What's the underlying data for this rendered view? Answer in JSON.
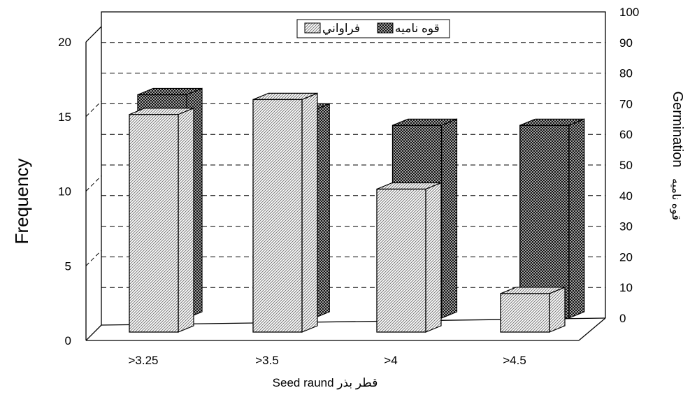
{
  "chart_data": {
    "type": "bar",
    "categories": [
      ">3.25",
      ">3.5",
      ">4",
      ">4.5"
    ],
    "series": [
      {
        "name": "فراواني",
        "axis": "left",
        "values": [
          15,
          16,
          10,
          3
        ],
        "pattern": "diagonal-light"
      },
      {
        "name": "قوه ناميه",
        "axis": "right",
        "values": [
          75,
          70,
          65,
          65
        ],
        "pattern": "crosshatch-dark"
      }
    ],
    "xlabel": "Seed raund  قطر بذر",
    "ylabel_left": "Frequency",
    "ylabel_right": "Germination",
    "ylabel_right_sub": "قوه ناميه",
    "ylim_left": [
      0,
      20
    ],
    "ylim_right": [
      0,
      100
    ],
    "yticks_left": [
      "0",
      "5",
      "10",
      "15",
      "20"
    ],
    "yticks_right": [
      "0",
      "10",
      "20",
      "30",
      "40",
      "50",
      "60",
      "70",
      "80",
      "90",
      "100"
    ],
    "legend_position": "top-center",
    "grid": true,
    "three_d": true
  }
}
